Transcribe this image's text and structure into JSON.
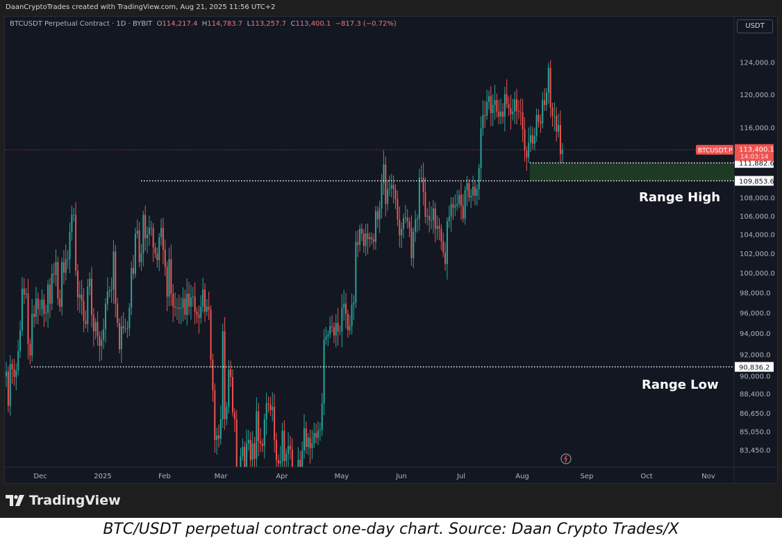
{
  "credit": "DaanCryptoTrades created with TradingView.com, Aug 21, 2025 11:56 UTC+2",
  "legend": {
    "symbol": "BTCUSDT Perpetual Contract · 1D · BYBIT",
    "o_label": "O",
    "o": "114,217.4",
    "h_label": "H",
    "h": "114,783.7",
    "l_label": "L",
    "l": "113,257.7",
    "c_label": "C",
    "c": "113,400.1",
    "change": "−817.3 (−0.72%)"
  },
  "currency_button": "USDT",
  "brand": "TradingView",
  "caption": "BTC/USDT perpetual contract one-day chart. Source: Daan Crypto Trades/X",
  "colors": {
    "up": "#26a69a",
    "down": "#ef5350",
    "background": "#131722",
    "zone": "#1e3a24"
  },
  "chart_data": {
    "type": "candlestick",
    "scale": "log",
    "interval": "1D",
    "start_date": "2024-11-13",
    "end_date": "2025-08-20",
    "ylim": [
      82500,
      127000
    ],
    "closes_thousands": [
      90.4,
      87.3,
      91.1,
      90.6,
      89.9,
      90.5,
      92.3,
      94.3,
      98.4,
      97.8,
      97.9,
      93.0,
      91.9,
      95.9,
      95.6,
      97.4,
      96.4,
      96.4,
      97.3,
      95.9,
      96.0,
      98.8,
      96.9,
      99.9,
      99.8,
      101.1,
      97.4,
      96.6,
      101.1,
      100.0,
      101.4,
      101.4,
      104.3,
      106.1,
      106.1,
      100.2,
      97.5,
      97.8,
      97.2,
      95.2,
      94.9,
      98.6,
      99.4,
      95.8,
      94.2,
      95.1,
      93.7,
      92.8,
      93.4,
      94.4,
      96.9,
      98.1,
      98.2,
      98.3,
      102.2,
      96.9,
      95.0,
      92.5,
      94.7,
      94.5,
      94.5,
      94.5,
      96.5,
      100.5,
      99.9,
      104.1,
      104.4,
      101.1,
      102.0,
      106.1,
      103.6,
      104.0,
      104.7,
      104.7,
      102.6,
      102.0,
      101.3,
      103.7,
      104.7,
      102.4,
      100.6,
      97.6,
      101.4,
      97.9,
      96.6,
      96.5,
      96.5,
      96.4,
      96.5,
      97.4,
      95.8,
      97.9,
      96.6,
      97.5,
      97.6,
      96.1,
      95.8,
      95.5,
      96.6,
      98.3,
      96.1,
      96.6,
      96.3,
      91.5,
      88.7,
      84.3,
      84.7,
      84.4,
      86.1,
      94.2,
      86.1,
      87.2,
      90.6,
      89.9,
      86.7,
      86.1,
      80.7,
      78.5,
      82.9,
      83.7,
      81.1,
      84.0,
      84.3,
      82.6,
      84.0,
      82.7,
      86.8,
      84.2,
      84.0,
      83.8,
      86.1,
      87.5,
      87.4,
      86.9,
      87.2,
      84.3,
      82.6,
      82.3,
      82.5,
      85.1,
      82.5,
      83.1,
      83.8,
      83.5,
      78.2,
      79.2,
      76.3,
      82.6,
      79.6,
      83.4,
      85.3,
      83.7,
      84.5,
      83.6,
      84.0,
      84.9,
      84.5,
      85.1,
      85.2,
      87.5,
      93.4,
      93.7,
      93.9,
      94.7,
      94.6,
      93.8,
      95.0,
      94.2,
      94.2,
      96.5,
      96.9,
      95.9,
      94.3,
      94.7,
      96.8,
      97.0,
      103.2,
      102.9,
      104.6,
      104.1,
      102.8,
      104.1,
      103.5,
      103.7,
      103.5,
      103.2,
      106.5,
      105.6,
      106.8,
      109.6,
      111.7,
      107.3,
      108.9,
      109.0,
      109.4,
      108.9,
      107.8,
      105.6,
      103.9,
      104.6,
      105.7,
      105.8,
      105.4,
      104.7,
      101.5,
      104.3,
      105.6,
      105.7,
      110.2,
      110.2,
      108.6,
      105.9,
      106.0,
      105.5,
      105.5,
      106.8,
      104.6,
      104.9,
      104.6,
      103.3,
      102.1,
      100.9,
      105.4,
      105.9,
      107.3,
      106.9,
      107.1,
      107.3,
      108.3,
      107.1,
      105.7,
      108.8,
      109.6,
      108.0,
      108.2,
      109.2,
      108.2,
      108.9,
      111.3,
      115.9,
      117.5,
      117.4,
      119.1,
      119.8,
      117.7,
      118.7,
      119.3,
      117.9,
      117.3,
      117.9,
      117.3,
      120.0,
      118.8,
      118.3,
      117.6,
      117.9,
      119.4,
      118.0,
      117.9,
      117.8,
      115.8,
      113.3,
      112.5,
      114.2,
      115.1,
      114.1,
      115.0,
      117.5,
      116.7,
      116.5,
      119.3,
      118.7,
      120.2,
      123.3,
      118.4,
      117.4,
      117.4,
      115.5,
      116.3,
      112.9,
      113.4
    ],
    "y_ticks": [
      "124,000.0",
      "120,000.0",
      "116,000.0",
      "108,000.0",
      "106,000.0",
      "104,000.0",
      "102,000.0",
      "100,000.0",
      "98,000.0",
      "96,000.0",
      "94,000.0",
      "92,000.0",
      "90,000.0",
      "88,400.0",
      "86,650.0",
      "85,050.0",
      "83,450.0"
    ],
    "x_ticks": [
      "Dec",
      "2025",
      "Feb",
      "Mar",
      "Apr",
      "May",
      "Jun",
      "Jul",
      "Aug",
      "Sep",
      "Oct",
      "Nov"
    ],
    "last_price": {
      "symbol_tag": "BTCUSDT.P",
      "price": "113,400.1",
      "countdown": "14:03:14"
    },
    "levels": [
      {
        "price": "111,882.6",
        "label": ""
      },
      {
        "price": "109,853.6",
        "label": "Range High"
      },
      {
        "price": "90,836.2",
        "label": "Range Low"
      }
    ]
  }
}
